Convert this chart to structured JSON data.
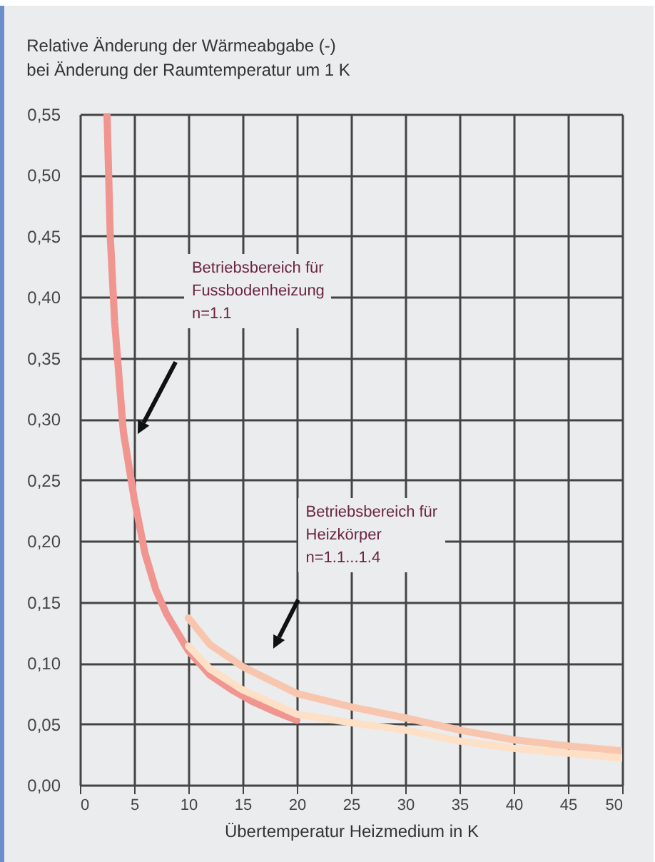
{
  "chart_data": {
    "type": "line",
    "title": "Relative Änderung der Wärmeabgabe (-)\nbei Änderung der Raumtemperatur um 1 K",
    "xlabel": "Übertemperatur Heizmedium in K",
    "series": [
      {
        "color": "#f09590",
        "x": [
          2.5,
          2.8,
          3.2,
          4,
          5,
          6,
          7,
          8,
          10,
          12,
          14,
          16,
          18,
          20
        ],
        "values": [
          0.55,
          0.45,
          0.38,
          0.29,
          0.235,
          0.19,
          0.16,
          0.14,
          0.11,
          0.09,
          0.078,
          0.068,
          0.06,
          0.053
        ]
      },
      {
        "color": "#f8c6ae",
        "x": [
          10,
          12,
          15,
          20,
          25,
          30,
          35,
          40,
          45,
          50
        ],
        "values": [
          0.137,
          0.115,
          0.097,
          0.075,
          0.064,
          0.055,
          0.045,
          0.037,
          0.032,
          0.028
        ]
      },
      {
        "color": "#fde0c6",
        "x": [
          10,
          12,
          15,
          20,
          25,
          30,
          35,
          40,
          45,
          50
        ],
        "values": [
          0.114,
          0.095,
          0.078,
          0.058,
          0.051,
          0.045,
          0.036,
          0.03,
          0.026,
          0.022
        ]
      }
    ],
    "xlim": [
      0,
      50
    ],
    "xticks": [
      0,
      5,
      10,
      15,
      20,
      25,
      30,
      35,
      40,
      45,
      50
    ],
    "ylim": [
      0,
      0.55
    ],
    "yticks": [
      {
        "value": 0,
        "label": "0,00"
      },
      {
        "value": 0.05,
        "label": "0,05"
      },
      {
        "value": 0.1,
        "label": "0,10"
      },
      {
        "value": 0.15,
        "label": "0,15"
      },
      {
        "value": 0.2,
        "label": "0,20"
      },
      {
        "value": 0.25,
        "label": "0,25"
      },
      {
        "value": 0.3,
        "label": "0,30"
      },
      {
        "value": 0.35,
        "label": "0,35"
      },
      {
        "value": 0.4,
        "label": "0,40"
      },
      {
        "value": 0.45,
        "label": "0,45"
      },
      {
        "value": 0.5,
        "label": "0,50"
      },
      {
        "value": 0.55,
        "label": "0,55"
      }
    ],
    "annotations": [
      "Betriebsbereich für\nFussbodenheizung\nn=1.1",
      "Betriebsbereich für\nHeizkörper\nn=1.1...1.4"
    ],
    "grid": true,
    "marker": "none",
    "line_style": "solid"
  }
}
